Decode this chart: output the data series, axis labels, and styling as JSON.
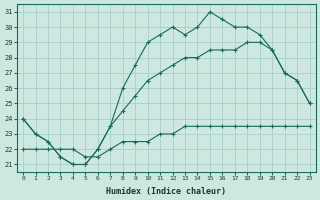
{
  "xlabel": "Humidex (Indice chaleur)",
  "ylabel": "",
  "background_color": "#cce8e0",
  "grid_color": "#aacec6",
  "line_color": "#1a6a5a",
  "xlim": [
    -0.5,
    23.5
  ],
  "ylim": [
    20.5,
    31.5
  ],
  "xticks": [
    0,
    1,
    2,
    3,
    4,
    5,
    6,
    7,
    8,
    9,
    10,
    11,
    12,
    13,
    14,
    15,
    16,
    17,
    18,
    19,
    20,
    21,
    22,
    23
  ],
  "yticks": [
    21,
    22,
    23,
    24,
    25,
    26,
    27,
    28,
    29,
    30,
    31
  ],
  "line1_x": [
    0,
    1,
    2,
    3,
    4,
    5,
    6,
    7,
    8,
    9,
    10,
    11,
    12,
    13,
    14,
    15,
    16,
    17,
    18,
    19,
    20,
    21,
    22,
    23
  ],
  "line1_y": [
    24,
    23,
    22.5,
    21.5,
    21,
    21,
    22,
    23.5,
    26,
    27.5,
    29,
    29.5,
    30,
    29.5,
    30,
    31,
    30.5,
    30,
    30,
    29.5,
    28.5,
    27,
    26.5,
    25
  ],
  "line2_x": [
    0,
    1,
    2,
    3,
    4,
    5,
    6,
    7,
    8,
    9,
    10,
    11,
    12,
    13,
    14,
    15,
    16,
    17,
    18,
    19,
    20,
    21,
    22,
    23
  ],
  "line2_y": [
    24,
    23,
    22.5,
    21.5,
    21,
    21,
    22,
    23.5,
    24.5,
    25.5,
    26.5,
    27,
    27.5,
    28,
    28,
    28.5,
    28.5,
    28.5,
    29,
    29,
    28.5,
    27,
    26.5,
    25
  ],
  "line3_x": [
    0,
    1,
    2,
    3,
    4,
    5,
    6,
    7,
    8,
    9,
    10,
    11,
    12,
    13,
    14,
    15,
    16,
    17,
    18,
    19,
    20,
    21,
    22,
    23
  ],
  "line3_y": [
    22,
    22,
    22,
    22,
    22,
    21.5,
    21.5,
    22,
    22.5,
    22.5,
    22.5,
    23,
    23,
    23.5,
    23.5,
    23.5,
    23.5,
    23.5,
    23.5,
    23.5,
    23.5,
    23.5,
    23.5,
    23.5
  ]
}
